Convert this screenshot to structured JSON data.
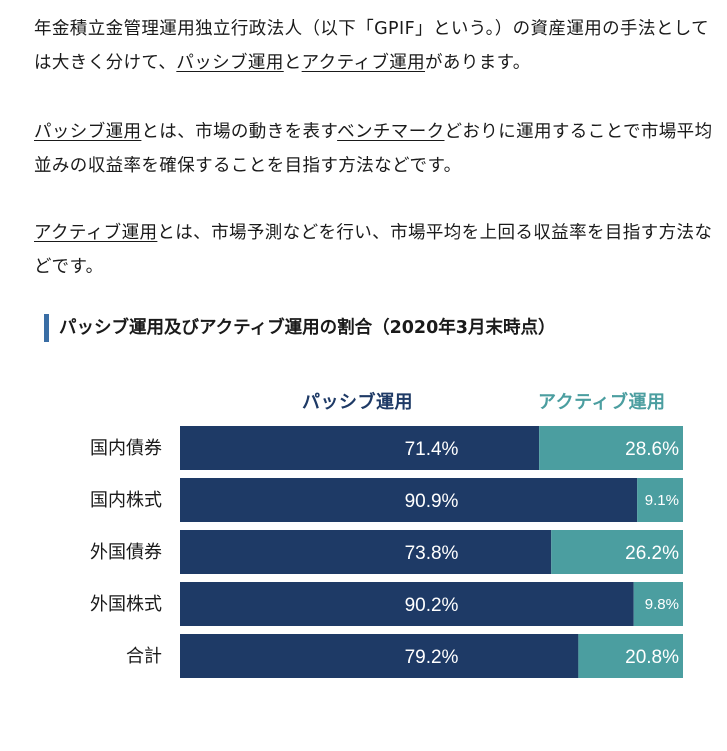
{
  "paragraphs": {
    "p1": {
      "t1": "年金積立金管理運用独立行政法人（以下「GPIF」という。）の資産運用の手法としては大きく分けて、",
      "link1": "パッシブ運用",
      "t2": "と",
      "link2": "アクティブ運用",
      "t3": "があります。"
    },
    "p2": {
      "link1": "パッシブ運用",
      "t1": "とは、市場の動きを表す",
      "link2": "ベンチマーク",
      "t2": "どおりに運用することで市場平均並みの収益率を確保することを目指す方法などです。"
    },
    "p3": {
      "link1": "アクティブ運用",
      "t1": "とは、市場予測などを行い、市場平均を上回る収益率を目指す方法などです。"
    }
  },
  "section_title": "パッシブ運用及びアクティブ運用の割合（2020年3月末時点）",
  "colors": {
    "passive": "#1e3a66",
    "active": "#4b9ea0",
    "title_bar": "#3a6ea5"
  },
  "chart_data": {
    "type": "bar",
    "orientation": "horizontal",
    "stacked": true,
    "percent": true,
    "categories": [
      "国内債券",
      "国内株式",
      "外国債券",
      "外国株式",
      "合計"
    ],
    "series": [
      {
        "name": "パッシブ運用",
        "values": [
          71.4,
          90.9,
          73.8,
          90.2,
          79.2
        ],
        "labels": [
          "71.4%",
          "90.9%",
          "73.8%",
          "90.2%",
          "79.2%"
        ]
      },
      {
        "name": "アクティブ運用",
        "values": [
          28.6,
          9.1,
          26.2,
          9.8,
          20.8
        ],
        "labels": [
          "28.6%",
          "9.1%",
          "26.2%",
          "9.8%",
          "20.8%"
        ]
      }
    ],
    "xlim": [
      0,
      100
    ],
    "legend": "top",
    "grid": false
  }
}
